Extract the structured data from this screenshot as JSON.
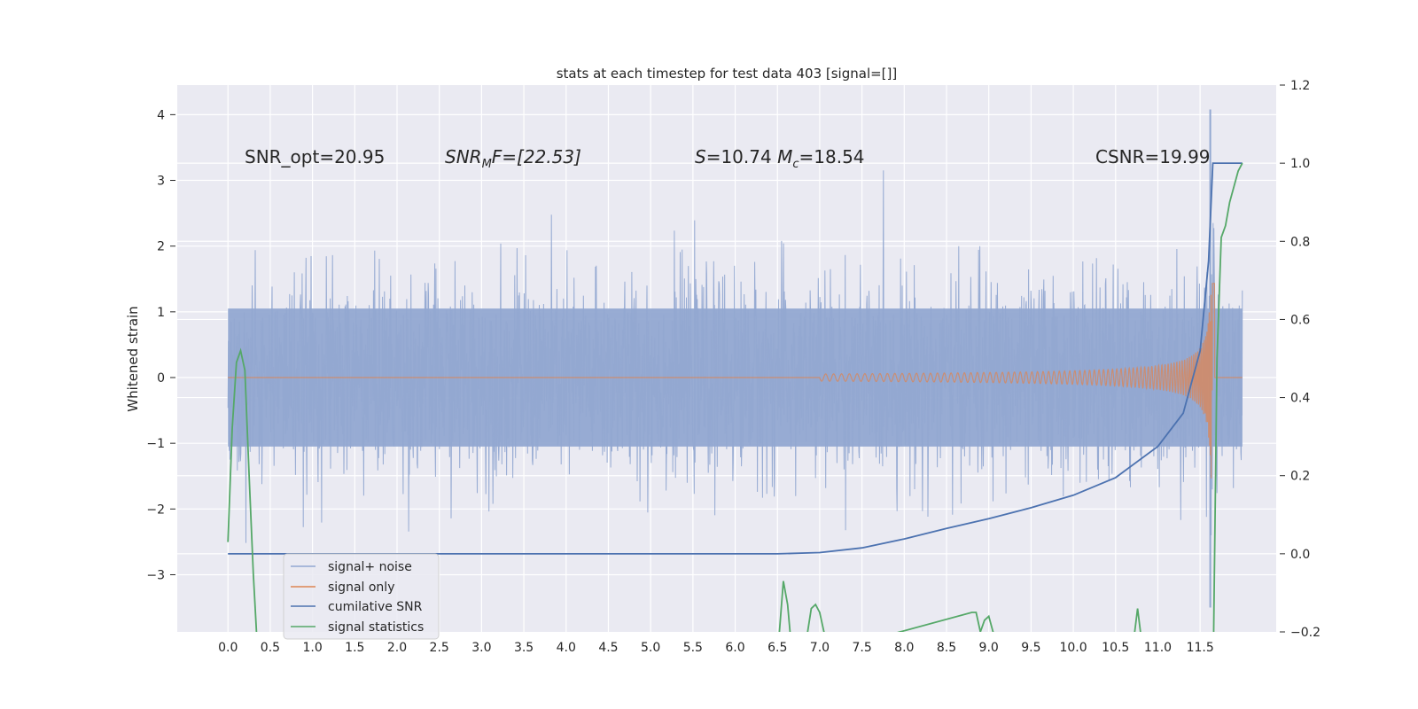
{
  "chart_data": {
    "type": "line",
    "title": "stats at each timestep for test data 403 [signal=[]]",
    "ylabel": "Whitened strain",
    "xlabel": "",
    "xlim": [
      -0.6,
      12.4
    ],
    "ylim": [
      -3.87,
      4.45
    ],
    "y2lim": [
      -0.2,
      1.2
    ],
    "grid": true,
    "x_ticks": [
      "0.0",
      "0.5",
      "1.0",
      "1.5",
      "2.0",
      "2.5",
      "3.0",
      "3.5",
      "4.0",
      "4.5",
      "5.0",
      "5.5",
      "6.0",
      "6.5",
      "7.0",
      "7.5",
      "8.0",
      "8.5",
      "9.0",
      "9.5",
      "10.0",
      "10.5",
      "11.0",
      "11.5"
    ],
    "y_ticks": [
      "4",
      "3",
      "2",
      "1",
      "0",
      "−1",
      "−2",
      "−3"
    ],
    "y2_ticks": [
      "1.2",
      "1.0",
      "0.8",
      "0.6",
      "0.4",
      "0.2",
      "0.0",
      "−0.2"
    ],
    "annotations": {
      "snr_opt": "SNR_opt=20.95",
      "snr_mf_main": "SNR",
      "snr_mf_sub": "M",
      "snr_mf_rest": "F=[22.53]",
      "s_main": "S",
      "s_rest": "=10.74 ",
      "mc_main": "M",
      "mc_sub": "c",
      "mc_rest": "=18.54",
      "csnr": "CSNR=19.99"
    },
    "legend": {
      "position": "lower-left",
      "entries": [
        "signal+ noise",
        "signal only",
        "cumilative SNR",
        "signal statistics"
      ]
    },
    "colors": {
      "signal_noise": "#92a8d1",
      "signal_only": "#dd8452",
      "cumulative_snr": "#4c72b0",
      "signal_statistics": "#55a868",
      "plot_bg": "#eaeaf2",
      "grid": "#ffffff"
    },
    "series": [
      {
        "name": "signal+ noise",
        "axis": "left",
        "description_values": "dense noise band approx ±1.5 with spikes up to 4.1 near x=11.6",
        "envelope_x": [
          0.0,
          11.62,
          11.65,
          12.0
        ],
        "envelope_upper": [
          1.8,
          2.6,
          4.1,
          1.5
        ],
        "envelope_lower": [
          -1.8,
          -2.6,
          -3.5,
          -1.5
        ]
      },
      {
        "name": "signal only",
        "axis": "left",
        "chirp_start": 7.0,
        "chirp_merger": 11.65,
        "amplitude_at_merger": 1.6
      },
      {
        "name": "cumilative SNR",
        "axis": "right",
        "x": [
          0.0,
          6.5,
          7.0,
          7.5,
          8.0,
          8.5,
          9.0,
          9.5,
          10.0,
          10.5,
          11.0,
          11.3,
          11.5,
          11.6,
          11.65,
          11.7,
          12.0
        ],
        "y": [
          0.0,
          0.0,
          0.003,
          0.015,
          0.038,
          0.065,
          0.09,
          0.118,
          0.15,
          0.195,
          0.275,
          0.36,
          0.52,
          0.75,
          1.0,
          1.0,
          1.0
        ]
      },
      {
        "name": "signal statistics",
        "axis": "right",
        "x": [
          0.0,
          0.05,
          0.1,
          0.15,
          0.2,
          0.25,
          0.3,
          0.35,
          6.52,
          6.57,
          6.62,
          6.67,
          6.85,
          6.9,
          6.95,
          7.0,
          7.05,
          7.1,
          8.8,
          8.85,
          8.9,
          8.95,
          9.0,
          9.05,
          9.1,
          10.72,
          10.76,
          10.8,
          11.66,
          11.7,
          11.75,
          11.8,
          11.85,
          11.9,
          11.95,
          12.0
        ],
        "y": [
          0.03,
          0.32,
          0.49,
          0.52,
          0.47,
          0.2,
          -0.05,
          -0.25,
          -0.21,
          -0.07,
          -0.13,
          -0.25,
          -0.21,
          -0.14,
          -0.13,
          -0.15,
          -0.2,
          -0.25,
          -0.15,
          -0.15,
          -0.2,
          -0.17,
          -0.16,
          -0.2,
          -0.25,
          -0.21,
          -0.14,
          -0.21,
          -0.21,
          0.5,
          0.81,
          0.84,
          0.9,
          0.94,
          0.98,
          1.0
        ]
      }
    ]
  }
}
